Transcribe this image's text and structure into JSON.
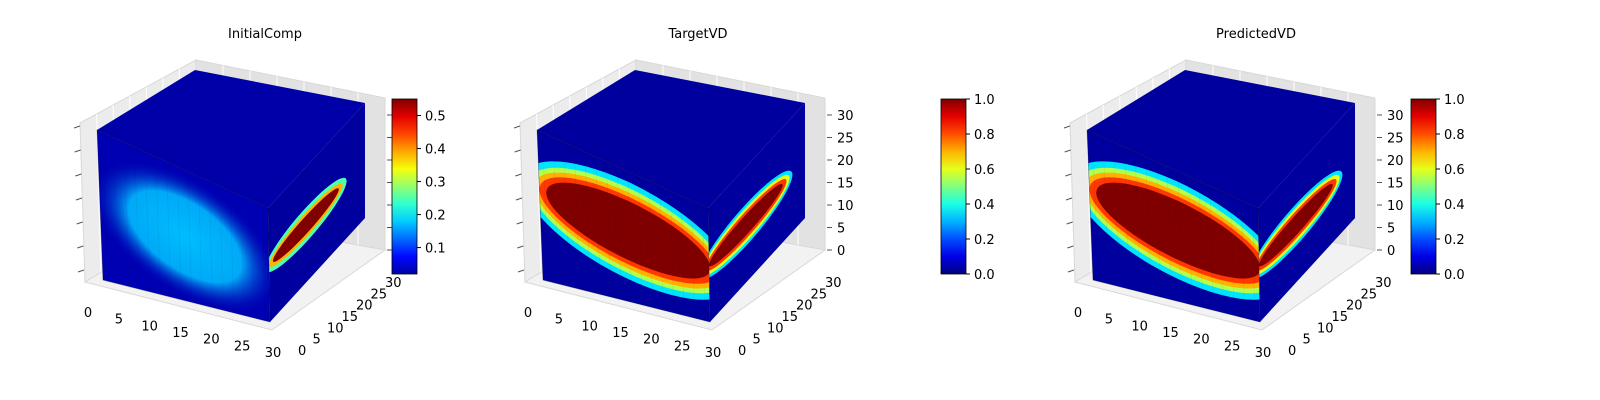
{
  "chart_data": [
    {
      "type": "heatmap",
      "title": "InitialComp",
      "x_ticks": [
        "0",
        "5",
        "10",
        "15",
        "20",
        "25",
        "30"
      ],
      "y_ticks": [
        "0",
        "5",
        "10",
        "15",
        "20",
        "25",
        "30"
      ],
      "z_ticks": [],
      "xlim": [
        0,
        32
      ],
      "ylim": [
        0,
        32
      ],
      "zlim": [
        0,
        32
      ],
      "colorbar": {
        "range": [
          0.02,
          0.55
        ],
        "ticks": [
          "0.1",
          "0.2",
          "0.3",
          "0.4",
          "0.5"
        ],
        "tick_values": [
          0.1,
          0.2,
          0.3,
          0.4,
          0.5
        ],
        "colormap": "jet"
      },
      "front_face": {
        "background_value": 0.05,
        "blob": {
          "value": 0.17
        }
      },
      "top_face": {
        "background_value": 0.04,
        "blob_value": 0.12
      },
      "side_face": {
        "background_value": 0.03,
        "spot_value": 0.55
      },
      "grid": true
    },
    {
      "type": "heatmap",
      "title": "TargetVD",
      "x_ticks": [
        "0",
        "5",
        "10",
        "15",
        "20",
        "25",
        "30"
      ],
      "y_ticks": [
        "0",
        "5",
        "10",
        "15",
        "20",
        "25",
        "30"
      ],
      "z_ticks": [
        "0",
        "5",
        "10",
        "15",
        "20",
        "25",
        "30"
      ],
      "xlim": [
        0,
        32
      ],
      "ylim": [
        0,
        32
      ],
      "zlim": [
        0,
        32
      ],
      "colorbar": {
        "range": [
          0.0,
          1.0
        ],
        "ticks": [
          "0.0",
          "0.2",
          "0.4",
          "0.6",
          "0.8",
          "1.0"
        ],
        "tick_values": [
          0.0,
          0.2,
          0.4,
          0.6,
          0.8,
          1.0
        ],
        "colormap": "jet"
      },
      "front_face": {
        "background_value": 0.03,
        "blob": {
          "value": 1.0
        }
      },
      "top_face": {
        "background_value": 0.03,
        "blob_value": 0.15
      },
      "side_face": {
        "background_value": 0.03,
        "spot_value": 1.0
      },
      "grid": true
    },
    {
      "type": "heatmap",
      "title": "PredictedVD",
      "x_ticks": [
        "0",
        "5",
        "10",
        "15",
        "20",
        "25",
        "30"
      ],
      "y_ticks": [
        "0",
        "5",
        "10",
        "15",
        "20",
        "25",
        "30"
      ],
      "z_ticks": [
        "0",
        "5",
        "10",
        "15",
        "20",
        "25",
        "30"
      ],
      "xlim": [
        0,
        32
      ],
      "ylim": [
        0,
        32
      ],
      "zlim": [
        0,
        32
      ],
      "colorbar": {
        "range": [
          0.0,
          1.0
        ],
        "ticks": [
          "0.0",
          "0.2",
          "0.4",
          "0.6",
          "0.8",
          "1.0"
        ],
        "tick_values": [
          0.0,
          0.2,
          0.4,
          0.6,
          0.8,
          1.0
        ],
        "colormap": "jet"
      },
      "front_face": {
        "background_value": 0.03,
        "blob": {
          "value": 1.0
        }
      },
      "top_face": {
        "background_value": 0.03,
        "blob_value": 0.15
      },
      "side_face": {
        "background_value": 0.03,
        "spot_value": 1.0
      },
      "grid": true
    }
  ]
}
